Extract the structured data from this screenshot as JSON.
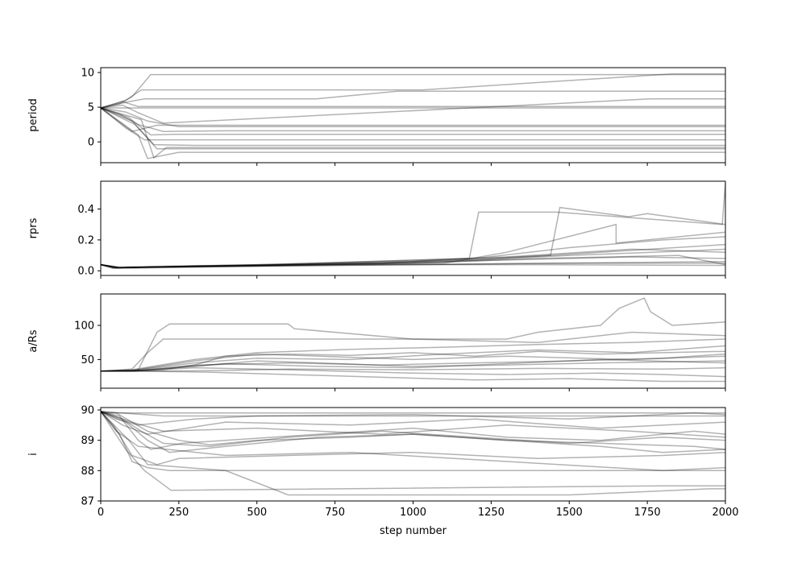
{
  "chart_data": [
    {
      "type": "line",
      "panel": "period",
      "ylabel": "period",
      "xlim": [
        0,
        2000
      ],
      "ylim": [
        -3.0,
        10.7
      ],
      "yticks": [
        10,
        5,
        0
      ],
      "ytick_labels": [
        "10",
        "5",
        "0"
      ],
      "series": [
        {
          "x": [
            0,
            100,
            400,
            2000
          ],
          "y": [
            4.9,
            4.9,
            4.9,
            4.9
          ]
        },
        {
          "x": [
            0,
            60,
            100,
            160,
            2000
          ],
          "y": [
            4.9,
            5.5,
            6.5,
            9.7,
            9.7
          ]
        },
        {
          "x": [
            0,
            80,
            130,
            1030,
            1830,
            2000
          ],
          "y": [
            4.9,
            6.0,
            7.5,
            7.5,
            9.8,
            9.8
          ]
        },
        {
          "x": [
            0,
            90,
            140,
            690,
            950,
            2000
          ],
          "y": [
            4.9,
            5.8,
            6.2,
            6.2,
            7.3,
            7.3
          ]
        },
        {
          "x": [
            0,
            70,
            120,
            200,
            1760,
            2000
          ],
          "y": [
            4.9,
            5.3,
            4.2,
            2.7,
            6.2,
            6.2
          ]
        },
        {
          "x": [
            0,
            80,
            150,
            250,
            2000
          ],
          "y": [
            4.9,
            4.3,
            3.0,
            2.2,
            2.2
          ]
        },
        {
          "x": [
            0,
            60,
            120,
            200,
            400,
            2000
          ],
          "y": [
            4.9,
            4.0,
            2.5,
            1.5,
            1.6,
            1.6
          ]
        },
        {
          "x": [
            0,
            90,
            160,
            240,
            2000
          ],
          "y": [
            4.9,
            3.5,
            1.0,
            1.1,
            1.1
          ]
        },
        {
          "x": [
            0,
            80,
            140,
            2000
          ],
          "y": [
            4.9,
            2.0,
            0.3,
            0.3
          ]
        },
        {
          "x": [
            0,
            100,
            170,
            300,
            2000
          ],
          "y": [
            4.9,
            3.0,
            -0.4,
            -0.5,
            -0.5
          ]
        },
        {
          "x": [
            0,
            110,
            180,
            650,
            2000
          ],
          "y": [
            4.9,
            2.5,
            -1.0,
            -1.0,
            -1.0
          ]
        },
        {
          "x": [
            0,
            120,
            150,
            250,
            2000
          ],
          "y": [
            4.9,
            1.0,
            -2.4,
            -1.5,
            -1.5
          ]
        },
        {
          "x": [
            0,
            130,
            170,
            210,
            2000
          ],
          "y": [
            4.9,
            3.2,
            -2.3,
            -0.8,
            -0.8
          ]
        },
        {
          "x": [
            0,
            100,
            180,
            2000
          ],
          "y": [
            4.9,
            1.5,
            2.4,
            2.4
          ]
        },
        {
          "x": [
            0,
            70,
            120,
            2000
          ],
          "y": [
            4.9,
            5.8,
            5.1,
            5.1
          ]
        }
      ]
    },
    {
      "type": "line",
      "panel": "rprs",
      "ylabel": "rprs",
      "xlim": [
        0,
        2000
      ],
      "ylim": [
        -0.03,
        0.58
      ],
      "yticks": [
        0.4,
        0.2,
        0.0
      ],
      "ytick_labels": [
        "0.4",
        "0.2",
        "0.0"
      ],
      "series": [
        {
          "x": [
            0,
            50,
            200,
            1000,
            1500,
            2000
          ],
          "y": [
            0.04,
            0.02,
            0.025,
            0.04,
            0.05,
            0.06
          ]
        },
        {
          "x": [
            0,
            60,
            300,
            900,
            1180,
            1210,
            1460,
            1990,
            2000
          ],
          "y": [
            0.04,
            0.02,
            0.03,
            0.05,
            0.08,
            0.38,
            0.38,
            0.3,
            0.57
          ]
        },
        {
          "x": [
            0,
            50,
            400,
            1000,
            1440,
            1470,
            1690,
            1750,
            2000
          ],
          "y": [
            0.04,
            0.02,
            0.035,
            0.06,
            0.1,
            0.41,
            0.35,
            0.37,
            0.3
          ]
        },
        {
          "x": [
            0,
            40,
            300,
            1100,
            1300,
            1650,
            1650,
            2000
          ],
          "y": [
            0.04,
            0.02,
            0.03,
            0.05,
            0.12,
            0.3,
            0.18,
            0.25
          ]
        },
        {
          "x": [
            0,
            60,
            500,
            1200,
            1500,
            1800,
            2000
          ],
          "y": [
            0.04,
            0.025,
            0.04,
            0.08,
            0.15,
            0.2,
            0.22
          ]
        },
        {
          "x": [
            0,
            50,
            500,
            1100,
            1500,
            1900,
            2000
          ],
          "y": [
            0.04,
            0.02,
            0.03,
            0.06,
            0.1,
            0.13,
            0.14
          ]
        },
        {
          "x": [
            0,
            60,
            400,
            900,
            1300,
            1700,
            2000
          ],
          "y": [
            0.04,
            0.02,
            0.035,
            0.045,
            0.07,
            0.09,
            0.08
          ]
        },
        {
          "x": [
            0,
            40,
            500,
            1000,
            1500,
            2000
          ],
          "y": [
            0.04,
            0.015,
            0.03,
            0.04,
            0.05,
            0.05
          ]
        },
        {
          "x": [
            0,
            50,
            600,
            1200,
            1600,
            2000
          ],
          "y": [
            0.04,
            0.02,
            0.04,
            0.07,
            0.12,
            0.17
          ]
        },
        {
          "x": [
            0,
            60,
            400,
            1000,
            1400,
            1850,
            2000
          ],
          "y": [
            0.04,
            0.02,
            0.03,
            0.05,
            0.08,
            0.1,
            0.04
          ]
        },
        {
          "x": [
            0,
            40,
            300,
            800,
            1400,
            2000
          ],
          "y": [
            0.04,
            0.02,
            0.03,
            0.04,
            0.04,
            0.035
          ]
        },
        {
          "x": [
            0,
            50,
            500,
            1300,
            1700,
            2000
          ],
          "y": [
            0.04,
            0.02,
            0.035,
            0.09,
            0.14,
            0.12
          ]
        }
      ]
    },
    {
      "type": "line",
      "panel": "a/Rs",
      "ylabel": "a/Rs",
      "xlim": [
        0,
        2000
      ],
      "ylim": [
        8,
        146
      ],
      "yticks": [
        100,
        50
      ],
      "ytick_labels": [
        "100",
        "50"
      ],
      "series": [
        {
          "x": [
            0,
            100,
            200,
            300,
            400,
            600,
            800,
            1000,
            1200,
            1400,
            1600,
            1800,
            2000
          ],
          "y": [
            33,
            33,
            35,
            42,
            55,
            58,
            56,
            60,
            55,
            62,
            58,
            60,
            62
          ]
        },
        {
          "x": [
            0,
            120,
            180,
            220,
            600,
            620,
            1000,
            1400,
            1700,
            2000
          ],
          "y": [
            33,
            35,
            90,
            102,
            102,
            95,
            80,
            75,
            90,
            85
          ]
        },
        {
          "x": [
            0,
            100,
            150,
            200,
            1300,
            1400,
            1600,
            1660,
            1740,
            1760,
            1830,
            2000
          ],
          "y": [
            33,
            36,
            60,
            80,
            80,
            90,
            100,
            125,
            140,
            120,
            100,
            105
          ]
        },
        {
          "x": [
            0,
            100,
            300,
            500,
            800,
            1100,
            1400,
            1700,
            2000
          ],
          "y": [
            33,
            34,
            45,
            52,
            50,
            58,
            64,
            60,
            70
          ]
        },
        {
          "x": [
            0,
            100,
            300,
            500,
            700,
            1000,
            1300,
            1600,
            2000
          ],
          "y": [
            33,
            33,
            40,
            48,
            45,
            40,
            42,
            45,
            48
          ]
        },
        {
          "x": [
            0,
            100,
            300,
            600,
            1000,
            1300,
            1600,
            1800,
            2000
          ],
          "y": [
            33,
            33,
            38,
            35,
            30,
            28,
            30,
            28,
            25
          ]
        },
        {
          "x": [
            0,
            100,
            300,
            600,
            900,
            1200,
            1500,
            1800,
            2000
          ],
          "y": [
            33,
            33,
            32,
            28,
            24,
            20,
            22,
            18,
            18
          ]
        },
        {
          "x": [
            0,
            200,
            400,
            600,
            1000,
            1400,
            1800,
            2000
          ],
          "y": [
            33,
            33,
            34,
            36,
            35,
            37,
            36,
            38
          ]
        },
        {
          "x": [
            0,
            100,
            300,
            500,
            800,
            1100,
            1400,
            1700,
            2000
          ],
          "y": [
            33,
            35,
            50,
            60,
            65,
            68,
            72,
            75,
            80
          ]
        },
        {
          "x": [
            0,
            100,
            300,
            500,
            700,
            1000,
            1300,
            1700,
            2000
          ],
          "y": [
            33,
            34,
            48,
            58,
            55,
            50,
            55,
            50,
            55
          ]
        },
        {
          "x": [
            0,
            100,
            300,
            600,
            900,
            1200,
            1500,
            1800,
            2000
          ],
          "y": [
            33,
            33,
            42,
            45,
            42,
            45,
            48,
            52,
            58
          ]
        },
        {
          "x": [
            0,
            100,
            400,
            700,
            1000,
            1300,
            1600,
            2000
          ],
          "y": [
            33,
            33,
            44,
            40,
            38,
            44,
            50,
            45
          ]
        }
      ]
    },
    {
      "type": "line",
      "panel": "i",
      "ylabel": "i",
      "xlim": [
        0,
        2000
      ],
      "ylim": [
        87.0,
        90.08
      ],
      "yticks": [
        90,
        89,
        88,
        87
      ],
      "ytick_labels": [
        "90",
        "89",
        "88",
        "87"
      ],
      "xlabel": "step number",
      "xticks": [
        0,
        250,
        500,
        750,
        1000,
        1250,
        1500,
        1750,
        2000
      ],
      "xtick_labels": [
        "0",
        "250",
        "500",
        "750",
        "1000",
        "1250",
        "1500",
        "1750",
        "2000"
      ],
      "series": [
        {
          "x": [
            0,
            2000
          ],
          "y": [
            89.9,
            89.9
          ]
        },
        {
          "x": [
            0,
            200,
            2000
          ],
          "y": [
            89.95,
            89.8,
            89.8
          ]
        },
        {
          "x": [
            0,
            50,
            100,
            150,
            250,
            350,
            500,
            800,
            1000,
            1300,
            1600,
            1900,
            2000
          ],
          "y": [
            89.95,
            89.9,
            89.6,
            89.3,
            89.0,
            88.85,
            89.0,
            89.1,
            89.2,
            89.0,
            88.9,
            88.8,
            88.7
          ]
        },
        {
          "x": [
            0,
            60,
            120,
            160,
            260,
            400,
            700,
            1000,
            1300,
            1600,
            1900,
            2000
          ],
          "y": [
            89.95,
            89.8,
            89.0,
            88.7,
            88.9,
            89.0,
            89.2,
            89.4,
            89.1,
            89.0,
            89.3,
            89.2
          ]
        },
        {
          "x": [
            0,
            70,
            130,
            200,
            350,
            600,
            900,
            1200,
            1500,
            1800,
            2000
          ],
          "y": [
            89.95,
            89.7,
            89.3,
            88.9,
            88.8,
            89.1,
            89.3,
            89.1,
            88.9,
            89.1,
            89.0
          ]
        },
        {
          "x": [
            0,
            80,
            150,
            220,
            400,
            700,
            1000,
            1300,
            1600,
            1800,
            2000
          ],
          "y": [
            89.95,
            89.6,
            89.0,
            88.6,
            88.8,
            89.1,
            89.2,
            89.0,
            88.8,
            88.6,
            88.7
          ]
        },
        {
          "x": [
            0,
            40,
            100,
            180,
            250,
            600,
            1000,
            1400,
            1800,
            2000
          ],
          "y": [
            89.95,
            89.5,
            88.5,
            88.2,
            88.4,
            88.5,
            88.6,
            88.4,
            88.5,
            88.6
          ]
        },
        {
          "x": [
            0,
            60,
            100,
            150,
            220,
            2000
          ],
          "y": [
            89.95,
            89.2,
            88.3,
            88.1,
            88.0,
            88.0
          ]
        },
        {
          "x": [
            0,
            80,
            140,
            225,
            1800,
            2000
          ],
          "y": [
            89.95,
            88.7,
            88.0,
            87.35,
            87.5,
            87.5
          ]
        },
        {
          "x": [
            0,
            90,
            150,
            400,
            600,
            1500,
            1950,
            2000
          ],
          "y": [
            89.95,
            89.0,
            88.2,
            88.0,
            87.2,
            87.2,
            87.4,
            87.4
          ]
        },
        {
          "x": [
            0,
            50,
            120,
            300,
            500,
            1000,
            1500,
            1900,
            2000
          ],
          "y": [
            89.95,
            89.7,
            89.5,
            89.7,
            89.8,
            89.85,
            89.7,
            89.9,
            89.85
          ]
        },
        {
          "x": [
            0,
            70,
            150,
            400,
            800,
            1200,
            1600,
            2000
          ],
          "y": [
            89.95,
            89.5,
            89.2,
            89.6,
            89.5,
            89.7,
            89.4,
            89.6
          ]
        },
        {
          "x": [
            0,
            100,
            200,
            500,
            900,
            1300,
            1700,
            2000
          ],
          "y": [
            89.95,
            89.6,
            89.3,
            89.4,
            89.2,
            89.5,
            89.3,
            89.1
          ]
        },
        {
          "x": [
            0,
            50,
            120,
            400,
            800,
            1300,
            1800,
            2000
          ],
          "y": [
            89.95,
            89.3,
            88.8,
            88.5,
            88.6,
            88.3,
            88.0,
            88.1
          ]
        }
      ]
    }
  ]
}
